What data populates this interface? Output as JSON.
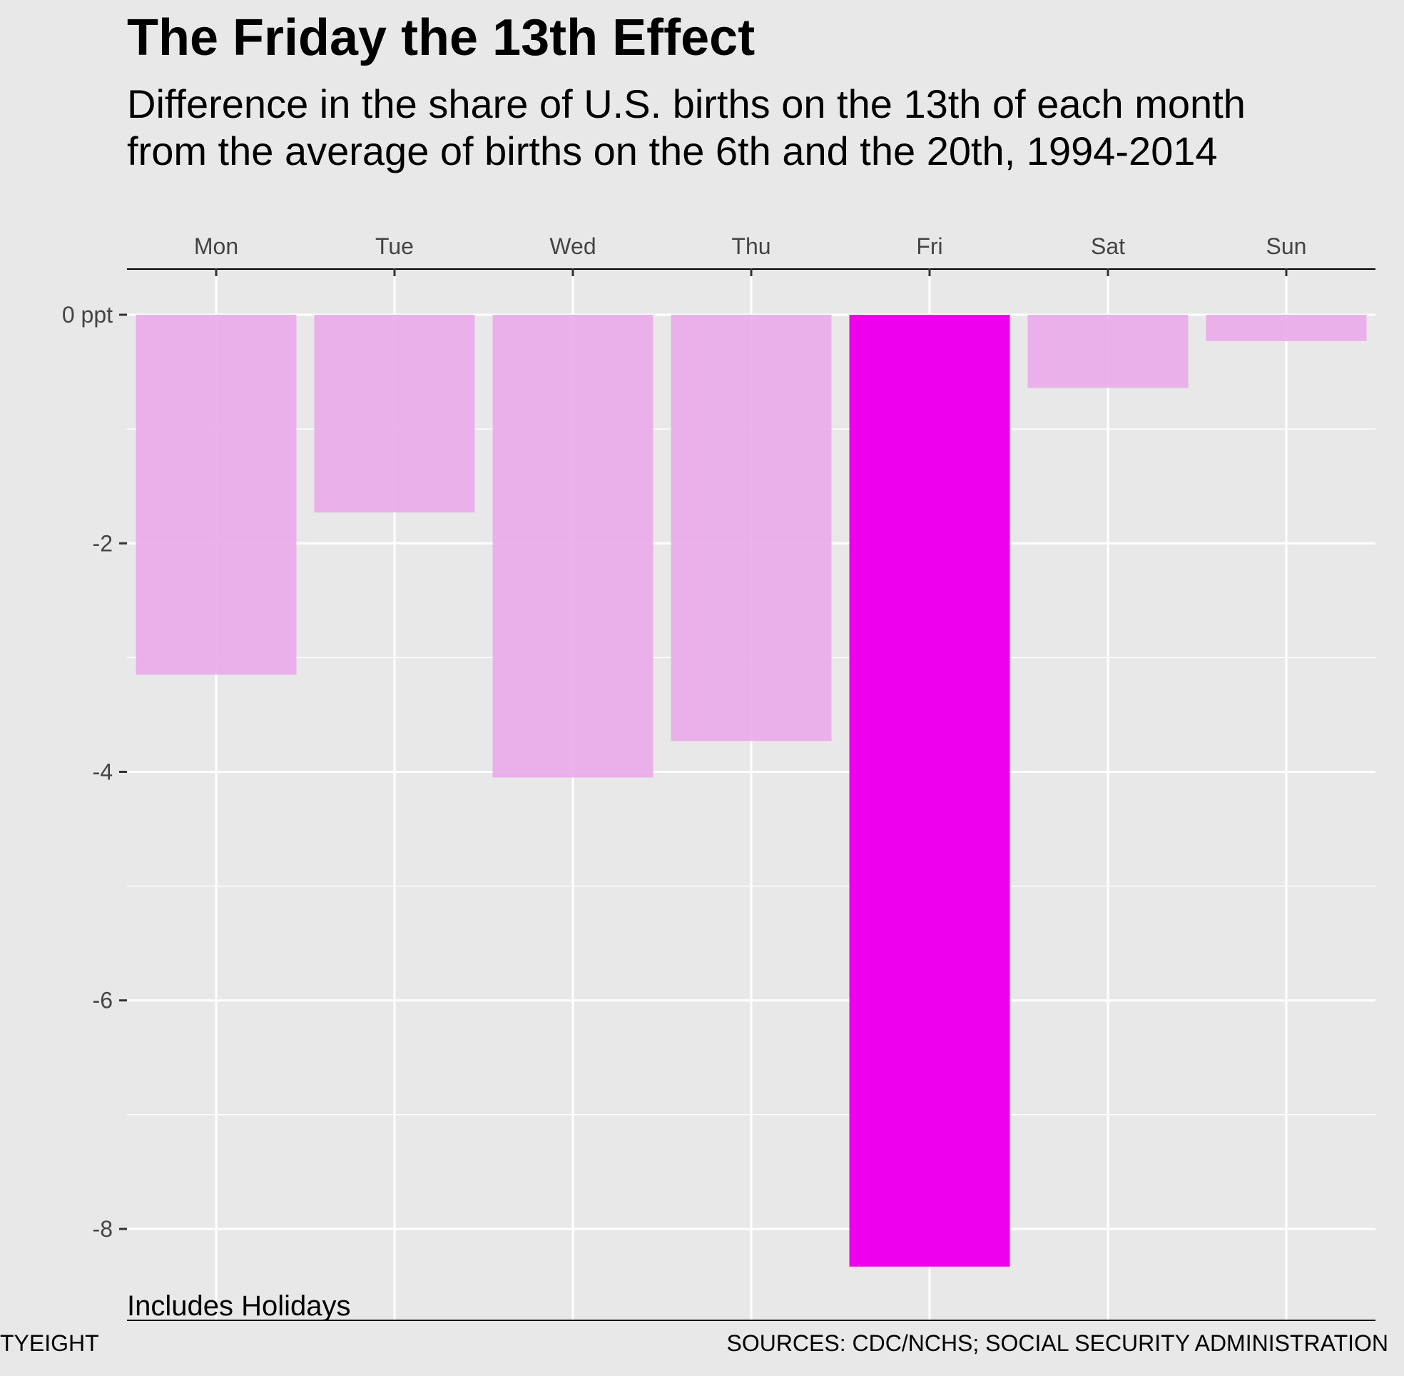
{
  "header": {
    "title": "The Friday the 13th Effect",
    "subtitle_line1": "Difference in the share of U.S. births on the 13th of each month",
    "subtitle_line2": "from the average of births on the 6th and the 20th, 1994-2014"
  },
  "annotation": "Includes Holidays",
  "footer": {
    "left": "TYEIGHT",
    "right": "SOURCES: CDC/NCHS; SOCIAL SECURITY ADMINISTRATION"
  },
  "colors": {
    "background": "#e8e8e8",
    "bar_default": "#eaaaea",
    "bar_highlight": "#ee00ee",
    "grid": "#ffffff",
    "tick_text": "#444444"
  },
  "chart_data": {
    "type": "bar",
    "categories": [
      "Mon",
      "Tue",
      "Wed",
      "Thu",
      "Fri",
      "Sat",
      "Sun"
    ],
    "values": [
      -3.15,
      -1.73,
      -4.05,
      -3.73,
      -8.33,
      -0.64,
      -0.23
    ],
    "highlight": "Fri",
    "x_axis_position": "top",
    "yticks": [
      0,
      -2,
      -4,
      -6,
      -8
    ],
    "ytick_labels": [
      "0 ppt",
      "-2",
      "-4",
      "-6",
      "-8"
    ],
    "ylim": [
      -8.8,
      0.4
    ],
    "grid": true
  }
}
